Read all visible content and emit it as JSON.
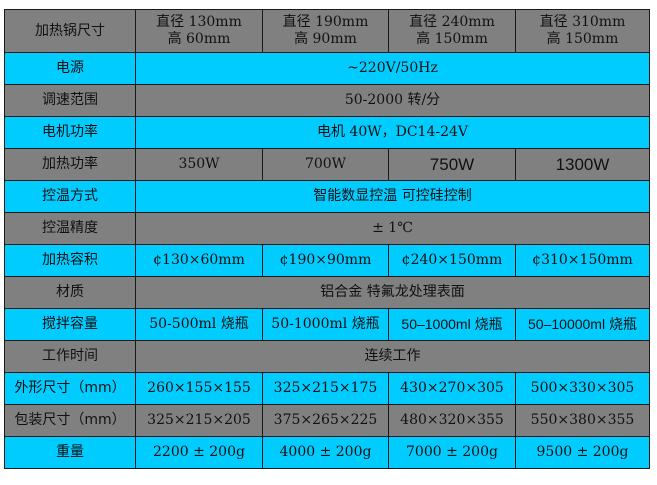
{
  "colors": {
    "gray_row": "#808080",
    "cyan_row": "#00ccff"
  },
  "header": {
    "label": "加热锅尺寸",
    "cols": [
      {
        "line1": "直径 130mm",
        "line2": "高 60mm"
      },
      {
        "line1": "直径 190mm",
        "line2": "高 90mm"
      },
      {
        "line1": "直径 240mm",
        "line2": "高 150mm"
      },
      {
        "line1": "直径 310mm",
        "line2": "高 150mm"
      }
    ]
  },
  "rows": {
    "power_supply": {
      "label": "电源",
      "value": "~220V/50Hz"
    },
    "speed_range": {
      "label": "调速范围",
      "value": "50-2000 转/分"
    },
    "motor_power": {
      "label": "电机功率",
      "value": "电机 40W，DC14-24V"
    },
    "heating_power": {
      "label": "加热功率",
      "values": [
        "350W",
        "700W",
        "750W",
        "1300W"
      ]
    },
    "temp_control": {
      "label": "控温方式",
      "value": "智能数显控温  可控硅控制"
    },
    "temp_accuracy": {
      "label": "控温精度",
      "value": "± 1℃"
    },
    "heating_volume": {
      "label": "加热容积",
      "values": [
        "¢130×60mm",
        "¢190×90mm",
        "¢240×150mm",
        "¢310×150mm"
      ]
    },
    "material": {
      "label": "材质",
      "value": "铝合金  特氟龙处理表面"
    },
    "stir_capacity": {
      "label": "搅拌容量",
      "values": [
        "50-500ml 烧瓶",
        "50-1000ml 烧瓶",
        "50–1000ml 烧瓶",
        "50–10000ml 烧瓶"
      ]
    },
    "work_time": {
      "label": "工作时间",
      "value": "连续工作"
    },
    "dimensions": {
      "label": "外形尺寸（mm）",
      "values": [
        "260×155×155",
        "325×215×175",
        "430×270×305",
        "500×330×305"
      ]
    },
    "package": {
      "label": "包装尺寸（mm）",
      "values": [
        "325×215×205",
        "375×265×225",
        "480×320×355",
        "550×380×355"
      ]
    },
    "weight": {
      "label": "重量",
      "values": [
        "2200 ± 200g",
        "4000 ± 200g",
        "7000 ± 200g",
        "9500 ± 200g"
      ]
    }
  }
}
